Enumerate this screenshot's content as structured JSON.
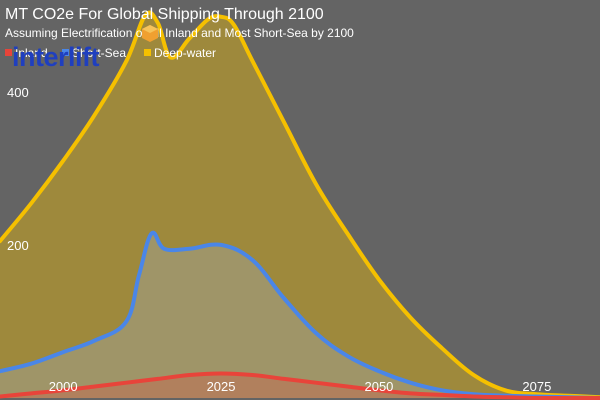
{
  "chart_data": {
    "type": "area",
    "title": "MT CO2e For Global Shipping Through 2100",
    "subtitle": "Assuming Electrification of All Inland and Most Short-Sea by 2100",
    "xlabel": "",
    "ylabel": "",
    "xlim": [
      1990,
      2085
    ],
    "ylim": [
      0,
      520
    ],
    "x_ticks": [
      2000,
      2025,
      2050,
      2075
    ],
    "y_ticks": [
      200,
      400
    ],
    "legend_position": "top-left",
    "grid": false,
    "series": [
      {
        "name": "Deep-water",
        "color": "#f5c000",
        "fill": "rgba(245,192,0,0.40)",
        "x": [
          1990,
          1995,
          2000,
          2005,
          2010,
          2013,
          2015,
          2017,
          2020,
          2023,
          2025,
          2027,
          2030,
          2035,
          2040,
          2045,
          2050,
          2055,
          2060,
          2065,
          2070,
          2075,
          2080,
          2085
        ],
        "y": [
          205,
          255,
          310,
          370,
          440,
          500,
          490,
          445,
          470,
          495,
          498,
          488,
          440,
          360,
          280,
          215,
          155,
          105,
          65,
          30,
          10,
          5,
          3,
          1
        ]
      },
      {
        "name": "Short-Sea",
        "color": "#4a86e8",
        "fill": "rgba(160,180,220,0.28)",
        "x": [
          1990,
          1995,
          2000,
          2005,
          2010,
          2012,
          2014,
          2016,
          2020,
          2025,
          2030,
          2035,
          2040,
          2045,
          2050,
          2055,
          2060,
          2065,
          2070,
          2075,
          2080,
          2085
        ],
        "y": [
          35,
          45,
          60,
          75,
          100,
          160,
          215,
          195,
          195,
          200,
          180,
          130,
          85,
          55,
          35,
          20,
          10,
          5,
          3,
          2,
          1,
          0
        ]
      },
      {
        "name": "Inland",
        "color": "#e8443a",
        "fill": "rgba(232,68,58,0.25)",
        "x": [
          1990,
          1995,
          2000,
          2005,
          2010,
          2015,
          2020,
          2025,
          2030,
          2035,
          2040,
          2045,
          2050,
          2055,
          2060,
          2065,
          2070,
          2075,
          2080,
          2085
        ],
        "y": [
          2,
          6,
          10,
          15,
          20,
          25,
          30,
          32,
          30,
          25,
          20,
          15,
          10,
          6,
          4,
          2,
          1,
          0,
          0,
          0
        ]
      }
    ]
  },
  "logo": {
    "text": "interlift",
    "icon": "hexagon-icon",
    "color": "#1f3fbf",
    "accent": "#f0a030"
  }
}
